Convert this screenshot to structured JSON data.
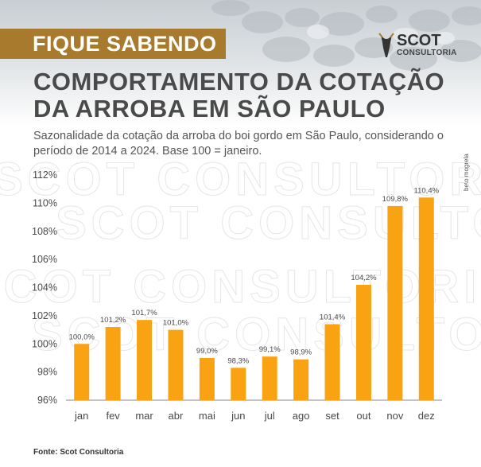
{
  "banner": {
    "tag": "FIQUE SABENDO"
  },
  "logo": {
    "name": "SCOT",
    "sub": "CONSULTORIA"
  },
  "header": {
    "title_line1": "COMPORTAMENTO DA COTAÇÃO",
    "title_line2": "DA ARROBA EM SÃO PAULO",
    "subtitle": "Sazonalidade da cotação da arroba do boi gordo em São Paulo, considerando o período de 2014 a 2024. Base 100 = janeiro."
  },
  "credit": "beto mogrela",
  "source": "Fonte: Scot Consultoria",
  "watermark": {
    "text": "SCOT CONSULTORIA"
  },
  "colors": {
    "bar": "#f9a312",
    "tag": "#a77a2e",
    "text": "#4a4a4a"
  },
  "chart_data": {
    "type": "bar",
    "categories": [
      "jan",
      "fev",
      "mar",
      "abr",
      "mai",
      "jun",
      "jul",
      "ago",
      "set",
      "out",
      "nov",
      "dez"
    ],
    "values": [
      100.0,
      101.2,
      101.7,
      101.0,
      99.0,
      98.3,
      99.1,
      98.9,
      101.4,
      104.2,
      109.8,
      110.4
    ],
    "data_labels": [
      "100,0%",
      "101,2%",
      "101,7%",
      "101,0%",
      "99,0%",
      "98,3%",
      "99,1%",
      "98,9%",
      "101,4%",
      "104,2%",
      "109,8%",
      "110,4%"
    ],
    "ylim": [
      96,
      112
    ],
    "yticks": [
      96,
      98,
      100,
      102,
      104,
      106,
      108,
      110,
      112
    ],
    "ytick_labels": [
      "96%",
      "98%",
      "100%",
      "102%",
      "104%",
      "106%",
      "108%",
      "110%",
      "112%"
    ],
    "grid": false
  }
}
